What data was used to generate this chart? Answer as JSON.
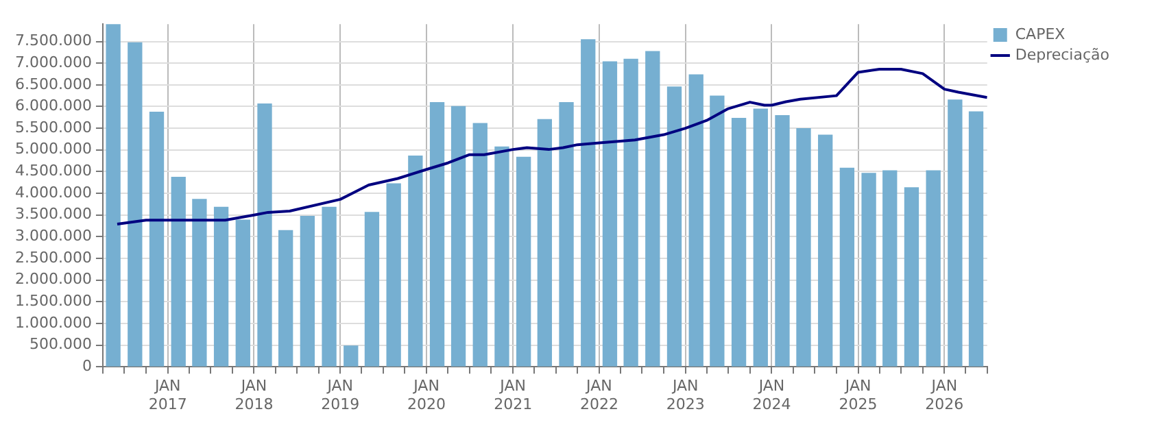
{
  "chart_data": {
    "type": "bar",
    "x": [
      "2016-05-15",
      "2016-08-15",
      "2016-11-15",
      "2017-02-15",
      "2017-05-15",
      "2017-08-15",
      "2017-11-15",
      "2018-02-15",
      "2018-05-15",
      "2018-08-15",
      "2018-11-15",
      "2019-02-15",
      "2019-05-15",
      "2019-08-15",
      "2019-11-15",
      "2020-02-15",
      "2020-05-15",
      "2020-08-15",
      "2020-11-15",
      "2021-02-15",
      "2021-05-15",
      "2021-08-15",
      "2021-11-15",
      "2022-02-15",
      "2022-05-15",
      "2022-08-15",
      "2022-11-15",
      "2023-02-15",
      "2023-05-15",
      "2023-08-15",
      "2023-11-15",
      "2024-02-15",
      "2024-05-15",
      "2024-08-15",
      "2024-11-15",
      "2025-02-15",
      "2025-05-15",
      "2025-08-15",
      "2025-11-15",
      "2026-02-15",
      "2026-05-15"
    ],
    "series": [
      {
        "name": "CAPEX",
        "color": "#76afd1",
        "values": [
          7900000,
          7470000,
          5870000,
          4370000,
          3860000,
          3680000,
          3380000,
          6060000,
          3140000,
          3470000,
          3680000,
          480000,
          3560000,
          4220000,
          4860000,
          6090000,
          6000000,
          5610000,
          5070000,
          4830000,
          5700000,
          6090000,
          7540000,
          7030000,
          7090000,
          7270000,
          6450000,
          6730000,
          6240000,
          5730000,
          5940000,
          5790000,
          5490000,
          5340000,
          4580000,
          4460000,
          4520000,
          4130000,
          4520000,
          6150000,
          5880000
        ]
      },
      {
        "name": "Depreciação",
        "type": "line",
        "color": "#000080",
        "x": [
          "2016-06",
          "2016-10",
          "2017-09",
          "2018-01",
          "2018-03",
          "2018-06",
          "2019-01",
          "2019-05",
          "2019-09",
          "2020-01",
          "2020-04",
          "2020-07",
          "2020-09",
          "2021-01",
          "2021-03",
          "2021-06",
          "2021-08",
          "2021-10",
          "2022-01",
          "2022-06",
          "2022-10",
          "2023-01",
          "2023-04",
          "2023-07",
          "2023-10",
          "2023-12",
          "2024-01",
          "2024-03",
          "2024-05",
          "2024-10",
          "2025-01",
          "2025-04",
          "2025-07",
          "2025-10",
          "2026-01",
          "2026-03",
          "2026-07"
        ],
        "values": [
          3290000,
          3380000,
          3380000,
          3500000,
          3560000,
          3590000,
          3860000,
          4190000,
          4340000,
          4550000,
          4700000,
          4890000,
          4890000,
          5010000,
          5050000,
          5010000,
          5050000,
          5120000,
          5160000,
          5230000,
          5350000,
          5500000,
          5680000,
          5950000,
          6100000,
          6030000,
          6030000,
          6110000,
          6170000,
          6250000,
          6790000,
          6860000,
          6860000,
          6760000,
          6400000,
          6330000,
          6210000
        ]
      }
    ],
    "xlim": [
      "2016-04",
      "2026-07"
    ],
    "xticks": [
      {
        "value": "2016-04",
        "label": null
      },
      {
        "value": "2016-07",
        "label": null
      },
      {
        "value": "2016-10",
        "label": null
      },
      {
        "value": "2017-01",
        "label": "JAN 2017"
      },
      {
        "value": "2017-04",
        "label": null
      },
      {
        "value": "2017-07",
        "label": null
      },
      {
        "value": "2017-10",
        "label": null
      },
      {
        "value": "2018-01",
        "label": "JAN 2018"
      },
      {
        "value": "2018-04",
        "label": null
      },
      {
        "value": "2018-07",
        "label": null
      },
      {
        "value": "2018-10",
        "label": null
      },
      {
        "value": "2019-01",
        "label": "JAN 2019"
      },
      {
        "value": "2019-04",
        "label": null
      },
      {
        "value": "2019-07",
        "label": null
      },
      {
        "value": "2019-10",
        "label": null
      },
      {
        "value": "2020-01",
        "label": "JAN 2020"
      },
      {
        "value": "2020-04",
        "label": null
      },
      {
        "value": "2020-07",
        "label": null
      },
      {
        "value": "2020-10",
        "label": null
      },
      {
        "value": "2021-01",
        "label": "JAN 2021"
      },
      {
        "value": "2021-04",
        "label": null
      },
      {
        "value": "2021-07",
        "label": null
      },
      {
        "value": "2021-10",
        "label": null
      },
      {
        "value": "2022-01",
        "label": "JAN 2022"
      },
      {
        "value": "2022-04",
        "label": null
      },
      {
        "value": "2022-07",
        "label": null
      },
      {
        "value": "2022-10",
        "label": null
      },
      {
        "value": "2023-01",
        "label": "JAN 2023"
      },
      {
        "value": "2023-04",
        "label": null
      },
      {
        "value": "2023-07",
        "label": null
      },
      {
        "value": "2023-10",
        "label": null
      },
      {
        "value": "2024-01",
        "label": "JAN 2024"
      },
      {
        "value": "2024-04",
        "label": null
      },
      {
        "value": "2024-07",
        "label": null
      },
      {
        "value": "2024-10",
        "label": null
      },
      {
        "value": "2025-01",
        "label": "JAN 2025"
      },
      {
        "value": "2025-04",
        "label": null
      },
      {
        "value": "2025-07",
        "label": null
      },
      {
        "value": "2025-10",
        "label": null
      },
      {
        "value": "2026-01",
        "label": "JAN 2026"
      },
      {
        "value": "2026-04",
        "label": null
      },
      {
        "value": "2026-07",
        "label": null
      }
    ],
    "ylim": [
      0,
      7900000
    ],
    "yticks": [
      0,
      {
        "value": 500000,
        "label": "500.000"
      },
      {
        "value": 1000000,
        "label": "1.000.000"
      },
      {
        "value": 1500000,
        "label": "1.500.000"
      },
      {
        "value": 2000000,
        "label": "2.000.000"
      },
      {
        "value": 2500000,
        "label": "2.500.000"
      },
      {
        "value": 3000000,
        "label": "3.000.000"
      },
      {
        "value": 3500000,
        "label": "3.500.000"
      },
      {
        "value": 4000000,
        "label": "4.000.000"
      },
      {
        "value": 4500000,
        "label": "4.500.000"
      },
      {
        "value": 5000000,
        "label": "5.000.000"
      },
      {
        "value": 5500000,
        "label": "5.500.000"
      },
      {
        "value": 6000000,
        "label": "6.000.000"
      },
      {
        "value": 6500000,
        "label": "6.500.000"
      },
      {
        "value": 7000000,
        "label": "7.000.000"
      },
      {
        "value": 7500000,
        "label": "7.500.000"
      }
    ],
    "grid": true,
    "legend": "top right",
    "marker": "none",
    "line_style": "solid"
  }
}
